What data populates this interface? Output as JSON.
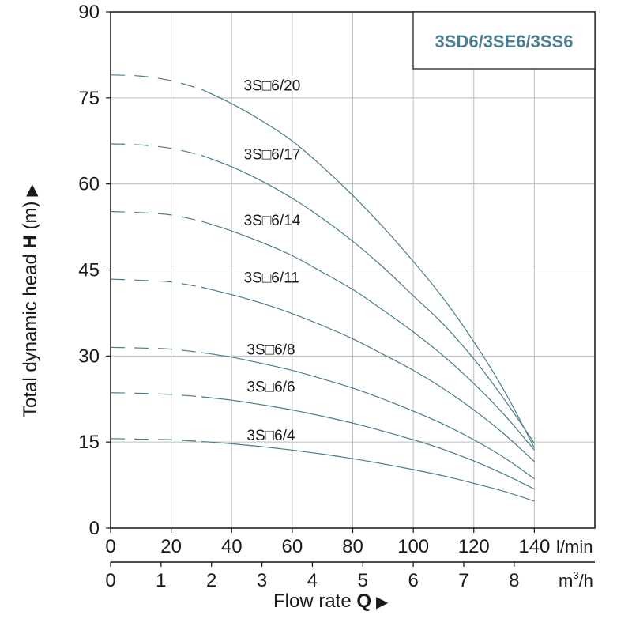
{
  "chart_data": {
    "type": "line",
    "title": "3SD6/3SE6/3SS6",
    "ylabel_prefix": "Total dynamic head ",
    "ylabel_bold": "H",
    "ylabel_suffix": " (m)",
    "ylabel_arrow": "▶",
    "xlabel_prefix": "Flow rate ",
    "xlabel_bold": "Q",
    "xlabel_arrow": "▶",
    "x_unit_primary": "l/min",
    "x_unit_secondary_base": "m",
    "x_unit_secondary_exp": "3",
    "x_unit_secondary_tail": "/h",
    "xlim": [
      0,
      160
    ],
    "ylim": [
      0,
      90
    ],
    "x_ticks": [
      "0",
      "20",
      "40",
      "60",
      "80",
      "100",
      "120",
      "140"
    ],
    "x_tick_values": [
      0,
      20,
      40,
      60,
      80,
      100,
      120,
      140
    ],
    "y_ticks": [
      "0",
      "15",
      "30",
      "45",
      "60",
      "75",
      "90"
    ],
    "y_tick_values": [
      0,
      15,
      30,
      45,
      60,
      75,
      90
    ],
    "m3h_ticks": [
      "0",
      "1",
      "2",
      "3",
      "4",
      "5",
      "6",
      "7",
      "8"
    ],
    "m3h_tick_values": [
      0,
      1,
      2,
      3,
      4,
      5,
      6,
      7,
      8
    ],
    "grid": true,
    "dashed_until_x": 30,
    "series": [
      {
        "name": "3S□6/20",
        "x": [
          0,
          10,
          20,
          30,
          40,
          50,
          60,
          70,
          80,
          90,
          100,
          110,
          120,
          130,
          140
        ],
        "y": [
          79.0,
          78.8,
          78.0,
          76.5,
          74.0,
          71.0,
          67.5,
          63.0,
          58.0,
          52.5,
          46.5,
          40.0,
          32.5,
          24.0,
          14.0
        ],
        "label_at": [
          44,
          76
        ]
      },
      {
        "name": "3S□6/17",
        "x": [
          0,
          10,
          20,
          30,
          40,
          50,
          60,
          70,
          80,
          90,
          100,
          110,
          120,
          130,
          140
        ],
        "y": [
          67.0,
          66.8,
          66.2,
          65.0,
          63.0,
          60.5,
          57.5,
          54.0,
          50.0,
          45.5,
          40.5,
          35.5,
          29.5,
          22.5,
          14.8
        ],
        "label_at": [
          44,
          64
        ]
      },
      {
        "name": "3S□6/14",
        "x": [
          0,
          10,
          20,
          30,
          40,
          50,
          60,
          70,
          80,
          90,
          100,
          110,
          120,
          130,
          140
        ],
        "y": [
          55.2,
          55.0,
          54.6,
          53.5,
          51.8,
          49.8,
          47.5,
          44.6,
          41.6,
          38.0,
          34.2,
          30.0,
          25.2,
          19.8,
          13.6
        ],
        "label_at": [
          44,
          52.5
        ]
      },
      {
        "name": "3S□6/11",
        "x": [
          0,
          10,
          20,
          30,
          40,
          50,
          60,
          70,
          80,
          90,
          100,
          110,
          120,
          130,
          140
        ],
        "y": [
          43.4,
          43.2,
          42.9,
          42.0,
          40.7,
          39.2,
          37.4,
          35.3,
          33.0,
          30.3,
          27.5,
          24.3,
          20.6,
          16.4,
          11.6
        ],
        "label_at": [
          44,
          42.5
        ]
      },
      {
        "name": "3S□6/8",
        "x": [
          0,
          10,
          20,
          30,
          40,
          50,
          60,
          70,
          80,
          90,
          100,
          110,
          120,
          130,
          140
        ],
        "y": [
          31.5,
          31.4,
          31.2,
          30.6,
          29.8,
          28.7,
          27.5,
          26.0,
          24.4,
          22.5,
          20.4,
          18.1,
          15.4,
          12.3,
          8.6
        ],
        "label_at": [
          45,
          30
        ]
      },
      {
        "name": "3S□6/6",
        "x": [
          0,
          10,
          20,
          30,
          40,
          50,
          60,
          70,
          80,
          90,
          100,
          110,
          120,
          130,
          140
        ],
        "y": [
          23.6,
          23.5,
          23.3,
          22.9,
          22.3,
          21.5,
          20.6,
          19.5,
          18.3,
          16.9,
          15.4,
          13.7,
          11.7,
          9.4,
          6.8
        ],
        "label_at": [
          45,
          23.5
        ]
      },
      {
        "name": "3S□6/4",
        "x": [
          0,
          10,
          20,
          30,
          40,
          50,
          60,
          70,
          80,
          90,
          100,
          110,
          120,
          130,
          140
        ],
        "y": [
          15.6,
          15.5,
          15.4,
          15.1,
          14.7,
          14.2,
          13.6,
          12.9,
          12.1,
          11.2,
          10.2,
          9.1,
          7.8,
          6.4,
          4.7
        ],
        "label_at": [
          45,
          15
        ]
      }
    ]
  }
}
